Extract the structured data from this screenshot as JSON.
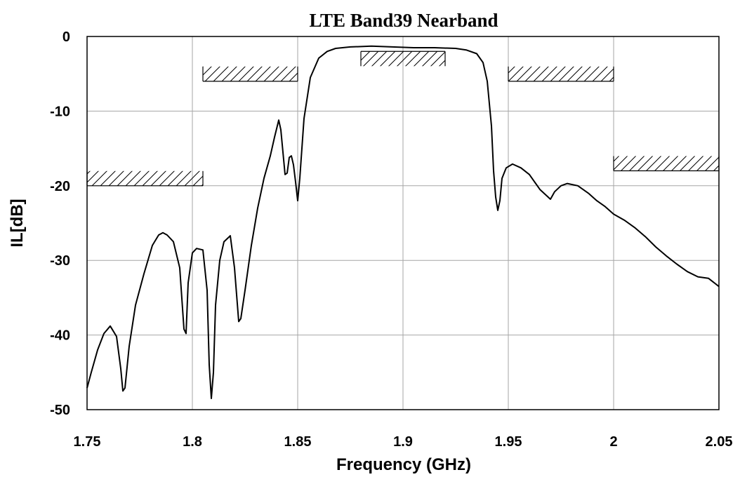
{
  "chart_data": {
    "type": "line",
    "title": "LTE Band39 Nearband",
    "xlabel": "Frequency (GHz)",
    "ylabel": "IL[dB]",
    "xlim": [
      1.75,
      2.05
    ],
    "ylim": [
      -50,
      0
    ],
    "x_ticks": [
      1.75,
      1.8,
      1.85,
      1.9,
      1.95,
      2.0,
      2.05
    ],
    "x_tick_labels": [
      "1.75",
      "1.8",
      "1.85",
      "1.9",
      "1.95",
      "2",
      "2.05"
    ],
    "y_ticks": [
      0,
      -10,
      -20,
      -30,
      -40,
      -50
    ],
    "y_tick_labels": [
      "0",
      "-10",
      "-20",
      "-30",
      "-40",
      "-50"
    ],
    "grid": true,
    "line_color": "#000000",
    "series": [
      {
        "x": [
          1.75,
          1.752,
          1.755,
          1.758,
          1.761,
          1.764,
          1.766,
          1.767,
          1.768,
          1.77,
          1.773,
          1.777,
          1.781,
          1.784,
          1.786,
          1.788,
          1.791,
          1.794,
          1.796,
          1.797,
          1.798,
          1.8,
          1.802,
          1.805,
          1.807,
          1.808,
          1.809,
          1.81,
          1.811,
          1.813,
          1.815,
          1.818,
          1.82,
          1.822,
          1.823,
          1.825,
          1.828,
          1.831,
          1.834,
          1.837,
          1.839,
          1.841,
          1.842,
          1.843,
          1.844,
          1.845,
          1.846,
          1.847,
          1.848,
          1.849,
          1.85,
          1.851,
          1.853,
          1.856,
          1.86,
          1.864,
          1.868,
          1.875,
          1.885,
          1.895,
          1.905,
          1.915,
          1.925,
          1.93,
          1.935,
          1.938,
          1.94,
          1.942,
          1.943,
          1.944,
          1.945,
          1.946,
          1.947,
          1.949,
          1.952,
          1.956,
          1.96,
          1.965,
          1.97,
          1.972,
          1.975,
          1.978,
          1.983,
          1.988,
          1.992,
          1.996,
          2.0,
          2.005,
          2.01,
          2.015,
          2.02,
          2.025,
          2.03,
          2.035,
          2.04,
          2.045,
          2.05
        ],
        "y": [
          -47.1,
          -45.0,
          -42.0,
          -39.8,
          -38.8,
          -40.2,
          -44.5,
          -47.5,
          -47.1,
          -41.5,
          -36.0,
          -31.8,
          -28.0,
          -26.6,
          -26.3,
          -26.6,
          -27.5,
          -31.0,
          -39.2,
          -39.8,
          -33.0,
          -29.0,
          -28.4,
          -28.6,
          -34.0,
          -44.0,
          -48.5,
          -45.0,
          -36.0,
          -30.0,
          -27.5,
          -26.7,
          -31.0,
          -38.2,
          -37.8,
          -34.0,
          -28.0,
          -23.0,
          -19.0,
          -16.0,
          -13.5,
          -11.2,
          -12.5,
          -15.5,
          -18.5,
          -18.3,
          -16.2,
          -16.0,
          -17.2,
          -19.5,
          -22.0,
          -19.0,
          -11.0,
          -5.5,
          -2.9,
          -2.0,
          -1.6,
          -1.4,
          -1.3,
          -1.4,
          -1.5,
          -1.5,
          -1.6,
          -1.8,
          -2.3,
          -3.5,
          -6.0,
          -12.0,
          -18.0,
          -21.5,
          -23.3,
          -22.0,
          -19.0,
          -17.6,
          -17.1,
          -17.6,
          -18.5,
          -20.5,
          -21.8,
          -20.8,
          -20.0,
          -19.7,
          -20.0,
          -21.0,
          -22.0,
          -22.8,
          -23.8,
          -24.6,
          -25.6,
          -26.8,
          -28.2,
          -29.4,
          -30.5,
          -31.5,
          -32.2,
          -32.4,
          -33.5
        ]
      }
    ],
    "spec_marks": [
      {
        "x_start": 1.75,
        "x_end": 1.805,
        "y": -20.0,
        "side": "upper"
      },
      {
        "x_start": 1.805,
        "x_end": 1.85,
        "y": -6.0,
        "side": "upper"
      },
      {
        "x_start": 1.88,
        "x_end": 1.92,
        "y": -2.0,
        "side": "lower"
      },
      {
        "x_start": 1.95,
        "x_end": 2.0,
        "y": -6.0,
        "side": "upper"
      },
      {
        "x_start": 2.0,
        "x_end": 2.05,
        "y": -18.0,
        "side": "upper"
      }
    ]
  }
}
